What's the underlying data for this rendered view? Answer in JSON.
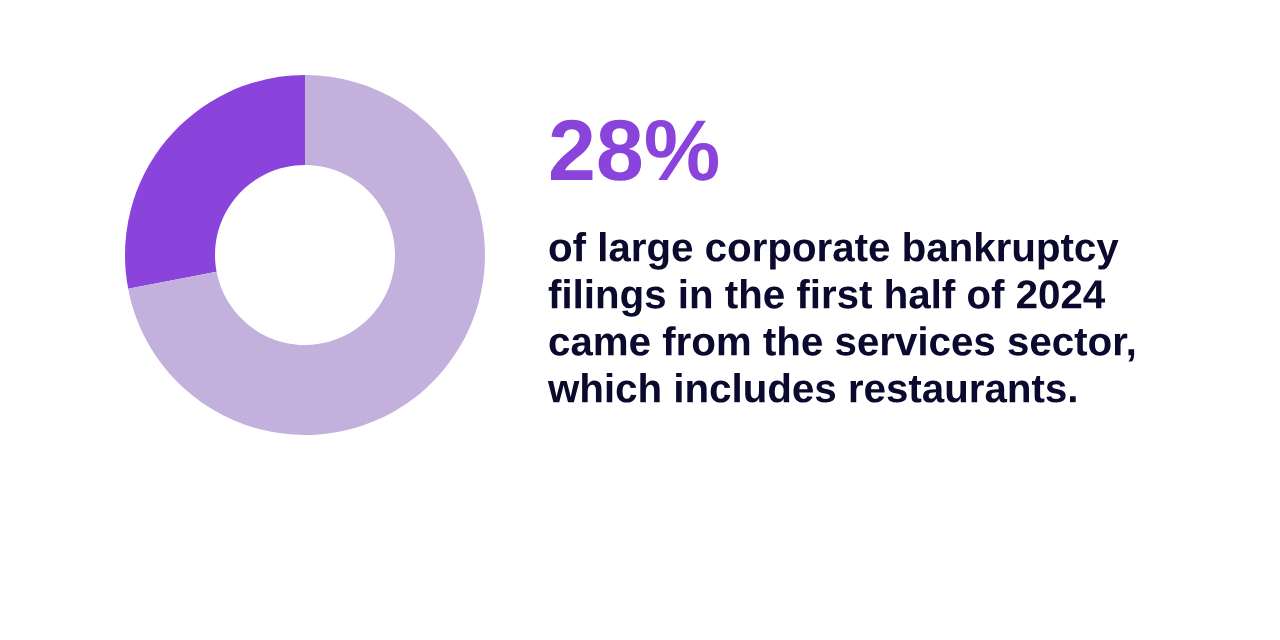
{
  "chart_data": {
    "type": "donut",
    "title": "28%",
    "subtitle": "of large corporate bankruptcy\nfilings in the first half of 2024\ncame from the services sector,\nwhich includes restaurants.",
    "categories": [
      null,
      null
    ],
    "values": [
      28,
      72
    ],
    "colors": [
      "#8a43db",
      "#c3b0dc"
    ]
  }
}
